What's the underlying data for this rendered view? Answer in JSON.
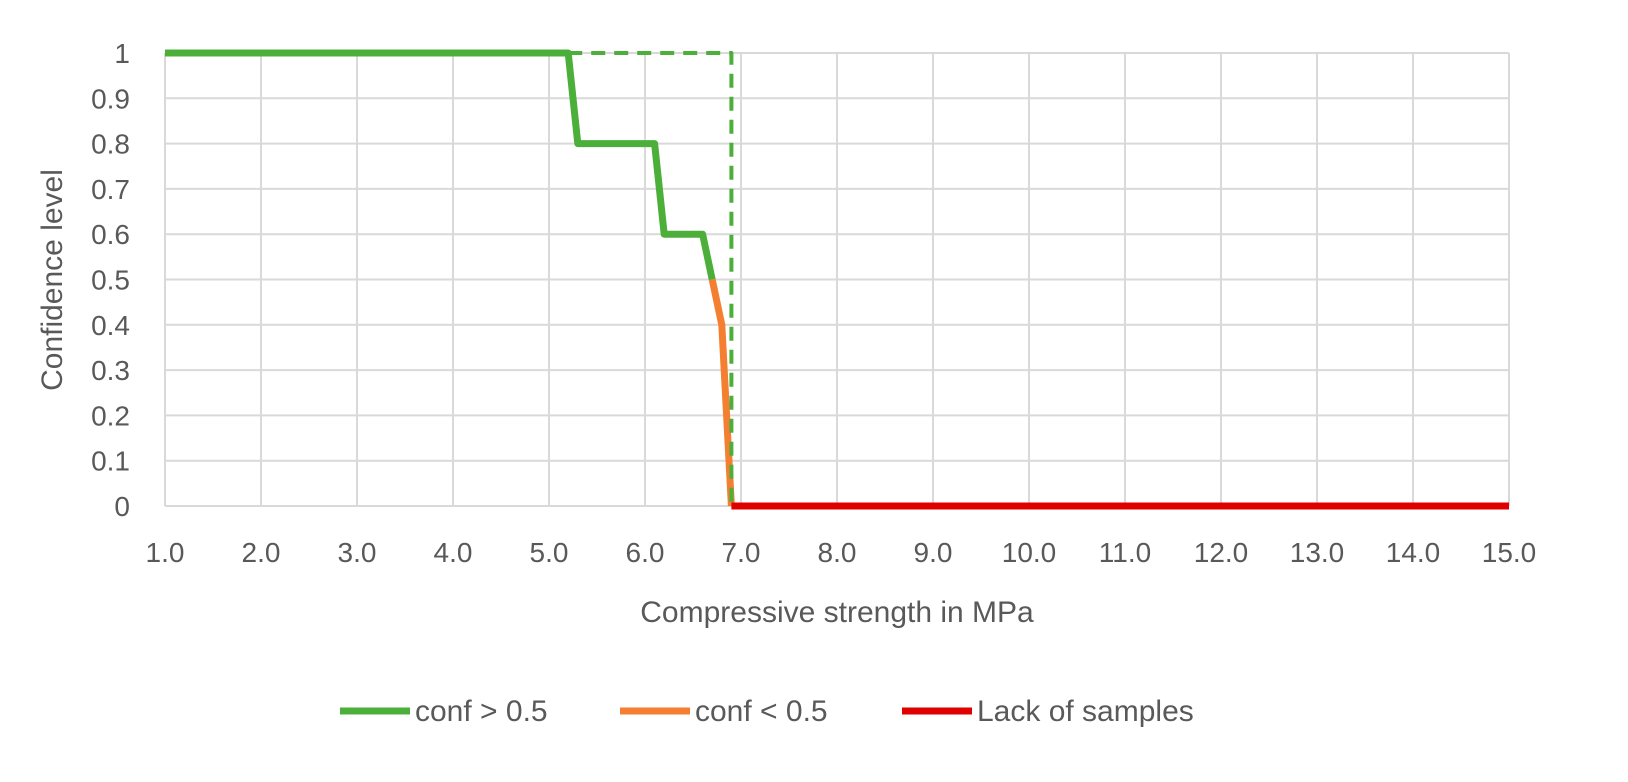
{
  "chart_data": {
    "type": "line",
    "xlabel": "Compressive strength in MPa",
    "ylabel": "Confidence level",
    "xlim": [
      1,
      15
    ],
    "ylim": [
      0,
      1
    ],
    "x_ticks": [
      1,
      2,
      3,
      4,
      5,
      6,
      7,
      8,
      9,
      10,
      11,
      12,
      13,
      14,
      15
    ],
    "x_tick_labels": [
      "1.0",
      "2.0",
      "3.0",
      "4.0",
      "5.0",
      "6.0",
      "7.0",
      "8.0",
      "9.0",
      "10.0",
      "11.0",
      "12.0",
      "13.0",
      "14.0",
      "15.0"
    ],
    "y_ticks": [
      0,
      0.1,
      0.2,
      0.3,
      0.4,
      0.5,
      0.6,
      0.7,
      0.8,
      0.9,
      1
    ],
    "y_tick_labels": [
      "0",
      "0.1",
      "0.2",
      "0.3",
      "0.4",
      "0.5",
      "0.6",
      "0.7",
      "0.8",
      "0.9",
      "1"
    ],
    "grid": true,
    "legend_position": "bottom",
    "series": [
      {
        "name": "conf > 0.5",
        "color": "#4caf3a",
        "style": "solid",
        "points": [
          [
            1.0,
            1.0
          ],
          [
            5.2,
            1.0
          ],
          [
            5.3,
            0.8
          ],
          [
            6.1,
            0.8
          ],
          [
            6.2,
            0.6
          ],
          [
            6.6,
            0.6
          ],
          [
            6.7,
            0.5
          ]
        ]
      },
      {
        "name": "conf < 0.5",
        "color": "#f47f30",
        "style": "solid",
        "points": [
          [
            6.7,
            0.5
          ],
          [
            6.8,
            0.4
          ],
          [
            6.9,
            0.0
          ]
        ]
      },
      {
        "name": "Lack of samples",
        "color": "#e00000",
        "style": "solid",
        "points": [
          [
            6.9,
            0.0
          ],
          [
            15.0,
            0.0
          ]
        ]
      },
      {
        "name": "",
        "color": "#4caf3a",
        "style": "dashed",
        "points": [
          [
            5.2,
            1.0
          ],
          [
            6.9,
            1.0
          ],
          [
            6.9,
            0.0
          ]
        ]
      }
    ],
    "legend": [
      {
        "label": "conf > 0.5",
        "color": "#4caf3a"
      },
      {
        "label": "conf < 0.5",
        "color": "#f47f30"
      },
      {
        "label": "Lack of samples",
        "color": "#e00000"
      }
    ]
  }
}
